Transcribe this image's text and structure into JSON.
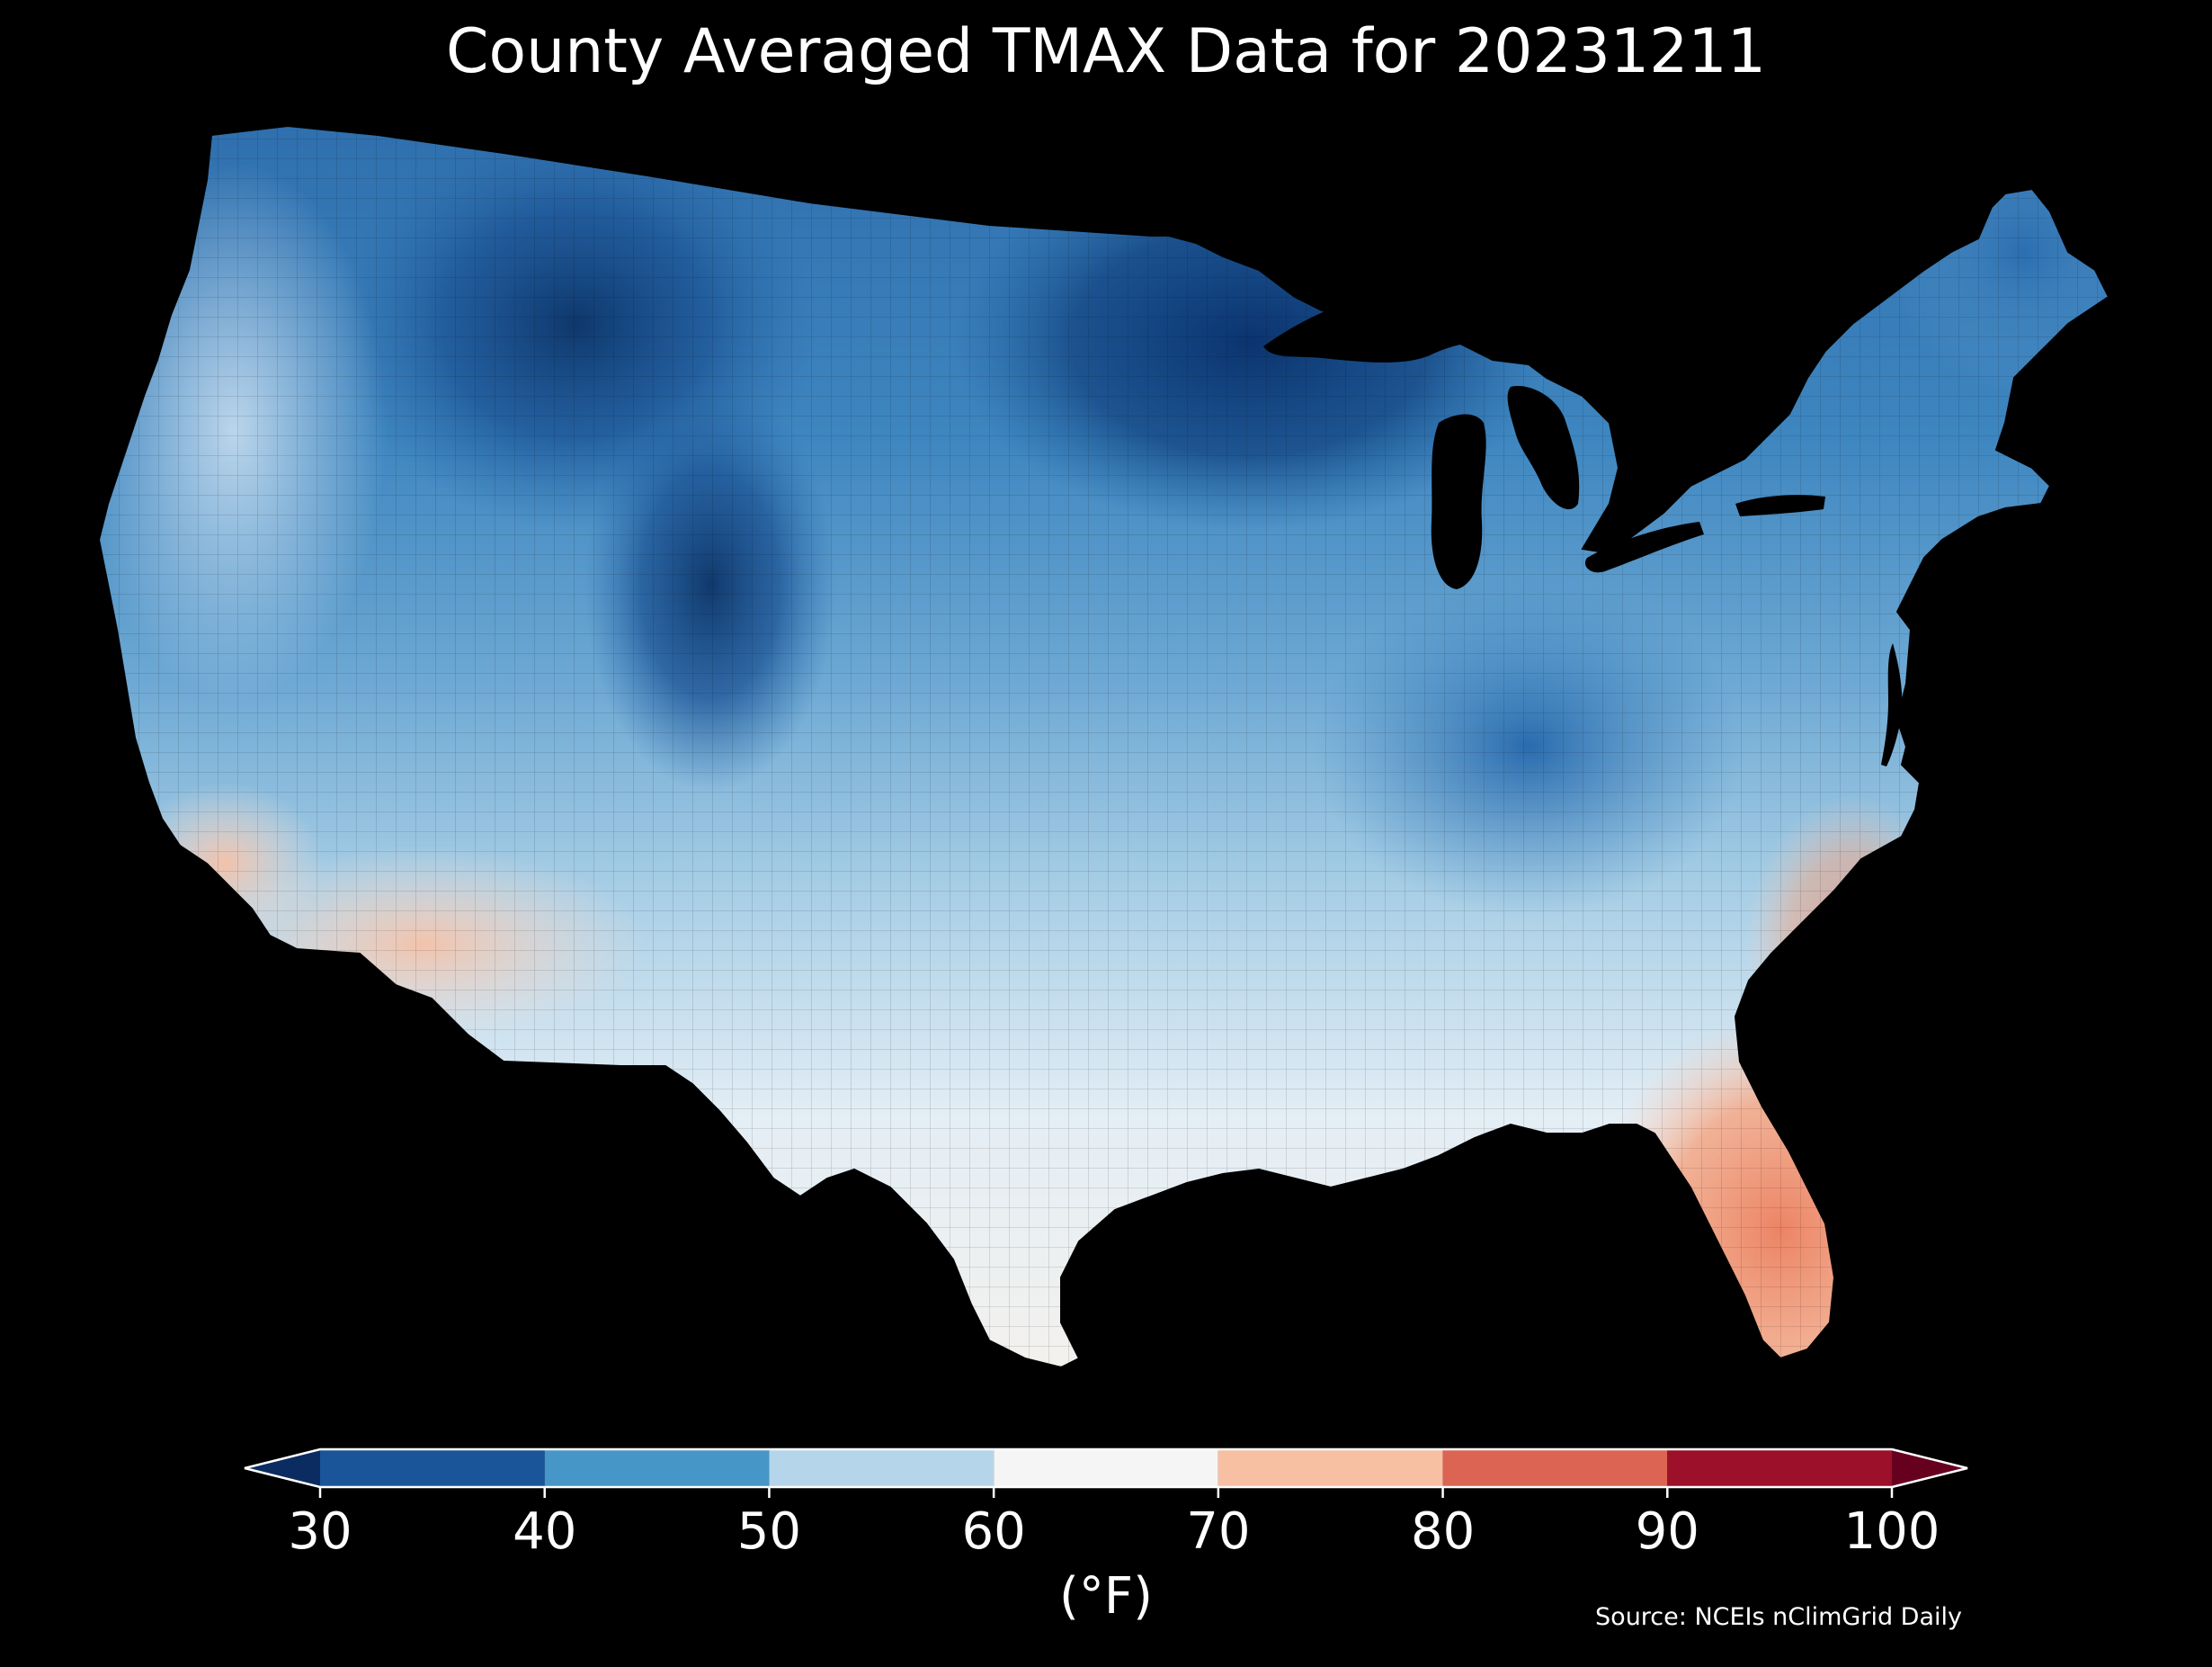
{
  "title": "County Averaged TMAX Data for 20231211",
  "colorbar": {
    "label": "(°F)",
    "ticks": [
      "30",
      "40",
      "50",
      "60",
      "70",
      "80",
      "90",
      "100"
    ],
    "bins": [
      {
        "from": 30,
        "to": 40,
        "color": "#1a5599"
      },
      {
        "from": 40,
        "to": 50,
        "color": "#4796c8"
      },
      {
        "from": 50,
        "to": 60,
        "color": "#b5d6ea"
      },
      {
        "from": 60,
        "to": 70,
        "color": "#f5f5f5"
      },
      {
        "from": 70,
        "to": 80,
        "color": "#f8c0a3"
      },
      {
        "from": 80,
        "to": 90,
        "color": "#db6453"
      },
      {
        "from": 90,
        "to": 100,
        "color": "#9c1029"
      }
    ],
    "under_color": "#0a2c60",
    "over_color": "#67001f",
    "extend": "both"
  },
  "source": "Source: NCEIs nClimGrid Daily",
  "map": {
    "region": "contiguous-united-states",
    "style": "county-choropleth",
    "background": "#000000"
  }
}
